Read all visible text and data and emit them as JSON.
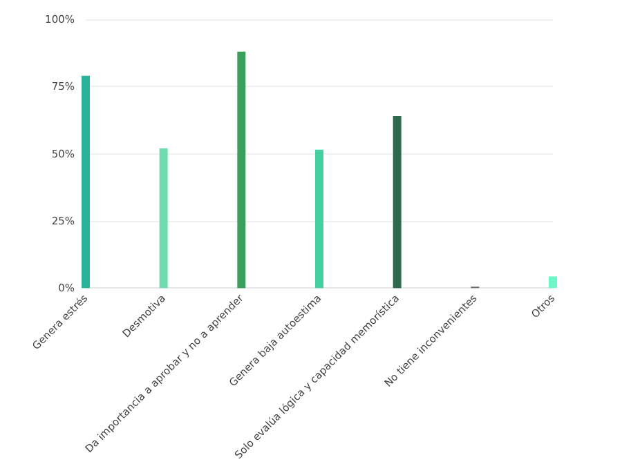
{
  "chart_data": {
    "type": "bar",
    "categories": [
      "Genera estrés",
      "Desmotiva",
      "Da importancia a aprobar y no a aprender",
      "Genera baja autoestima",
      "Solo evalúa lógica y capacidad memorística",
      "No tiene inconvenientes",
      "Otros"
    ],
    "values": [
      79,
      52,
      88,
      51.5,
      64,
      0.5,
      4.3
    ],
    "colors": [
      "#2bb39a",
      "#6fdcb0",
      "#3a9e5c",
      "#45cfa2",
      "#2e6b4c",
      "#666666",
      "#6ff5cc"
    ],
    "ylim": [
      0,
      100
    ],
    "yticks": [
      {
        "value": 0,
        "label": "0%"
      },
      {
        "value": 25,
        "label": "25%"
      },
      {
        "value": 50,
        "label": "50%"
      },
      {
        "value": 75,
        "label": "75%"
      },
      {
        "value": 100,
        "label": "100%"
      }
    ],
    "grid": "y"
  }
}
